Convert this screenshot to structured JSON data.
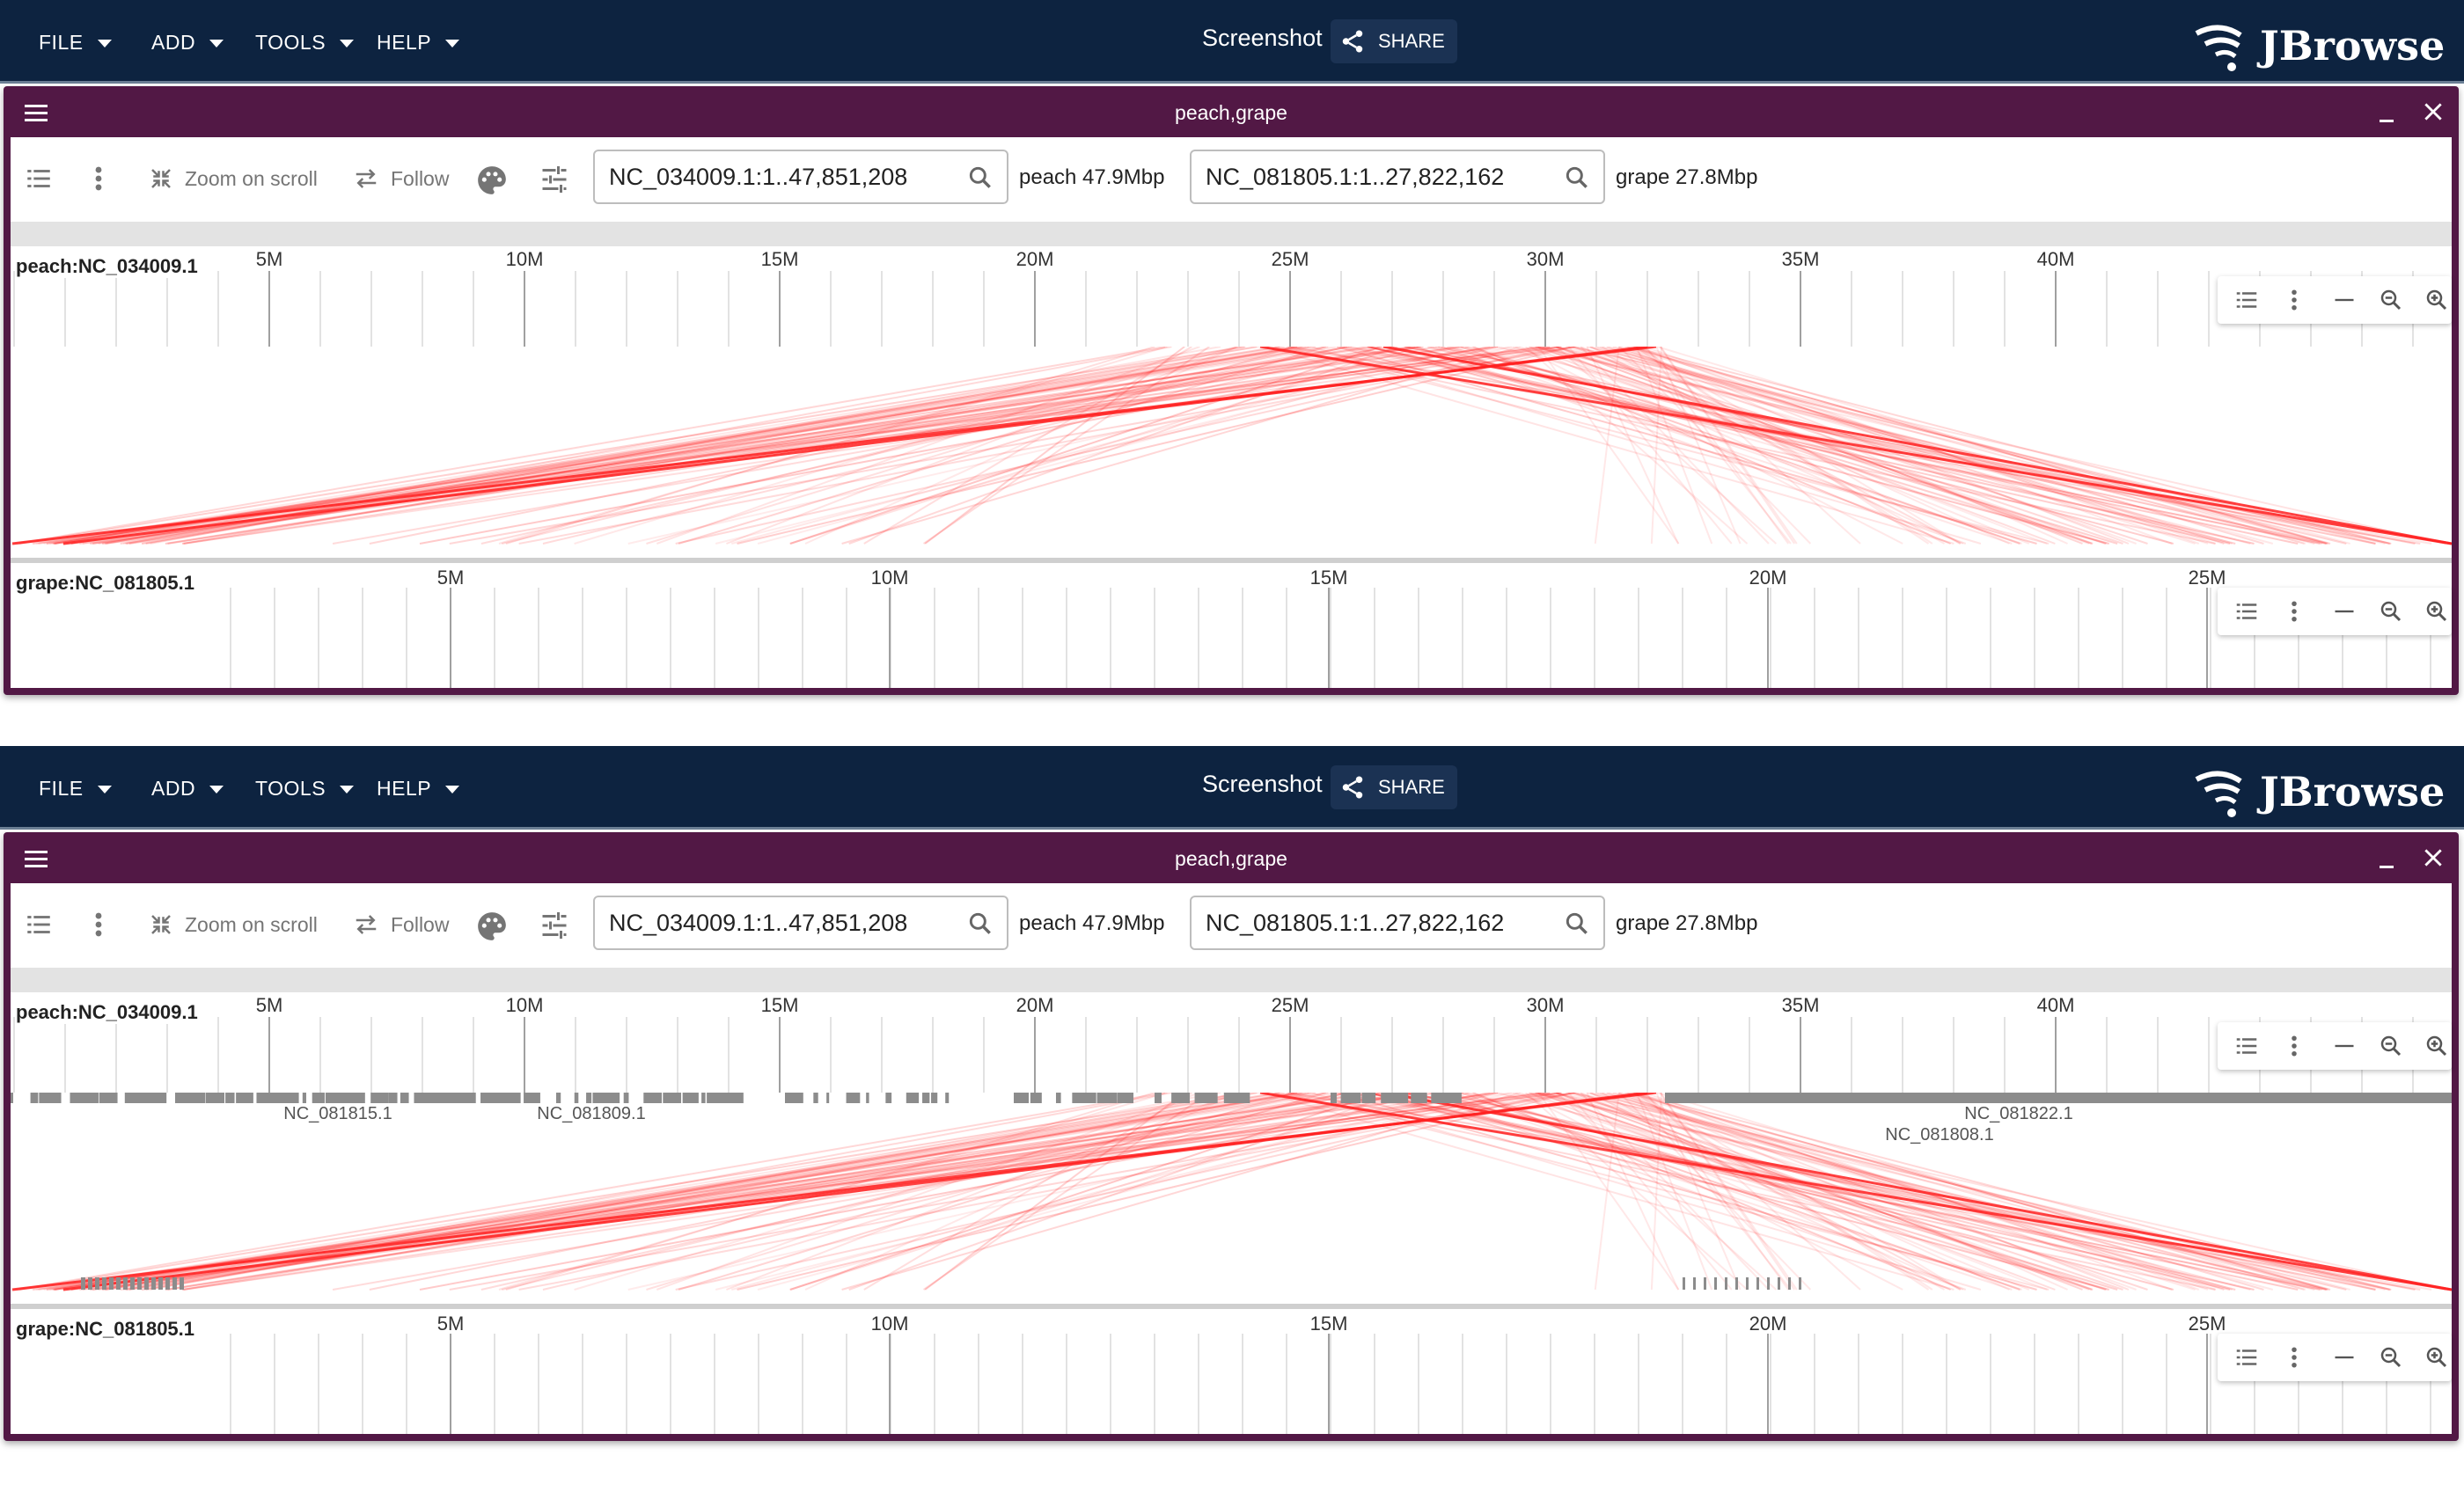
{
  "app": {
    "menus": [
      "FILE",
      "ADD",
      "TOOLS",
      "HELP"
    ],
    "session_name": "Screenshot",
    "share_label": "SHARE",
    "logo_text": "JBrowse"
  },
  "panels": [
    {
      "view_title": "peach,grape",
      "toolbar": {
        "zoom_on_scroll": "Zoom on scroll",
        "follow": "Follow",
        "top_locstring": "NC_034009.1:1..47,851,208",
        "top_assembly": "peach 47.9Mbp",
        "bottom_locstring": "NC_081805.1:1..27,822,162",
        "bottom_assembly": "grape 27.8Mbp"
      },
      "top_ruler": {
        "name": "peach:NC_034009.1",
        "ticks": [
          "5M",
          "10M",
          "15M",
          "20M",
          "25M",
          "30M",
          "35M",
          "40M"
        ]
      },
      "bottom_ruler": {
        "name": "grape:NC_081805.1",
        "ticks": [
          "5M",
          "10M",
          "15M",
          "20M",
          "25M"
        ]
      },
      "feature_labels": []
    },
    {
      "view_title": "peach,grape",
      "toolbar": {
        "zoom_on_scroll": "Zoom on scroll",
        "follow": "Follow",
        "top_locstring": "NC_034009.1:1..47,851,208",
        "top_assembly": "peach 47.9Mbp",
        "bottom_locstring": "NC_081805.1:1..27,822,162",
        "bottom_assembly": "grape 27.8Mbp"
      },
      "top_ruler": {
        "name": "peach:NC_034009.1",
        "ticks": [
          "5M",
          "10M",
          "15M",
          "20M",
          "25M",
          "30M",
          "35M",
          "40M"
        ]
      },
      "bottom_ruler": {
        "name": "grape:NC_081805.1",
        "ticks": [
          "5M",
          "10M",
          "15M",
          "20M",
          "25M"
        ]
      },
      "feature_labels": [
        "NC_081815.1",
        "NC_081809.1",
        "NC_081822.1",
        "NC_081808.1"
      ]
    }
  ],
  "colors": {
    "appbar": "#0d2340",
    "view_header": "#521845",
    "synteny": "#ff2020",
    "feature": "#8c8c8c"
  },
  "icons": [
    "caret-down-icon",
    "share-icon",
    "jbrowse-logo-icon",
    "hamburger-icon",
    "minimize-icon",
    "close-icon",
    "track-list-icon",
    "kebab-menu-icon",
    "zoom-compress-icon",
    "follow-swap-icon",
    "palette-icon",
    "tune-icon",
    "search-icon",
    "zoom-out-icon",
    "zoom-in-icon"
  ]
}
